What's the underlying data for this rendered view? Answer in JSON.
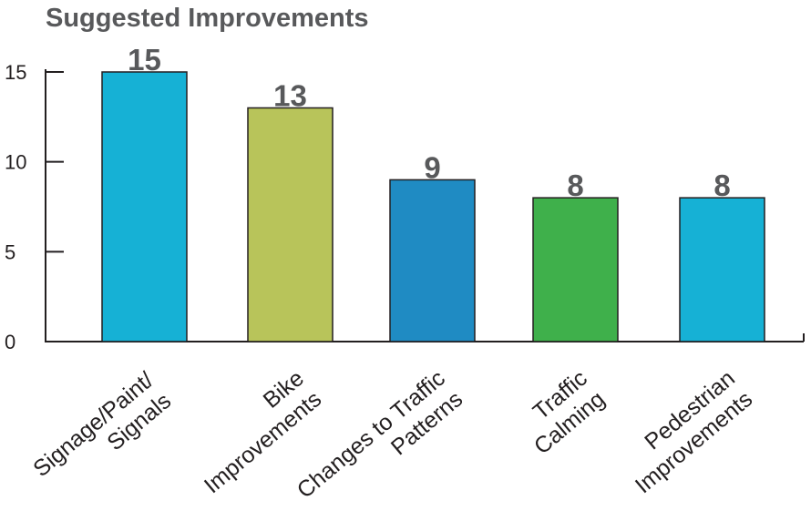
{
  "chart_data": {
    "type": "bar",
    "title": "Suggested Improvements",
    "xlabel": "",
    "ylabel": "",
    "ylim": [
      0,
      15
    ],
    "yticks": [
      0,
      5,
      10,
      15
    ],
    "grid": false,
    "categories": [
      [
        "Signage/Paint/",
        "Signals"
      ],
      [
        "Bike",
        "Improvements"
      ],
      [
        "Changes to Traffic",
        "Patterns"
      ],
      [
        "Traffic",
        "Calming"
      ],
      [
        "Pedestrian",
        "Improvements"
      ]
    ],
    "values": [
      15,
      13,
      9,
      8,
      8
    ],
    "colors": [
      "#16b1d5",
      "#b8c45a",
      "#1f8bc3",
      "#3fb04b",
      "#16b1d5"
    ]
  }
}
